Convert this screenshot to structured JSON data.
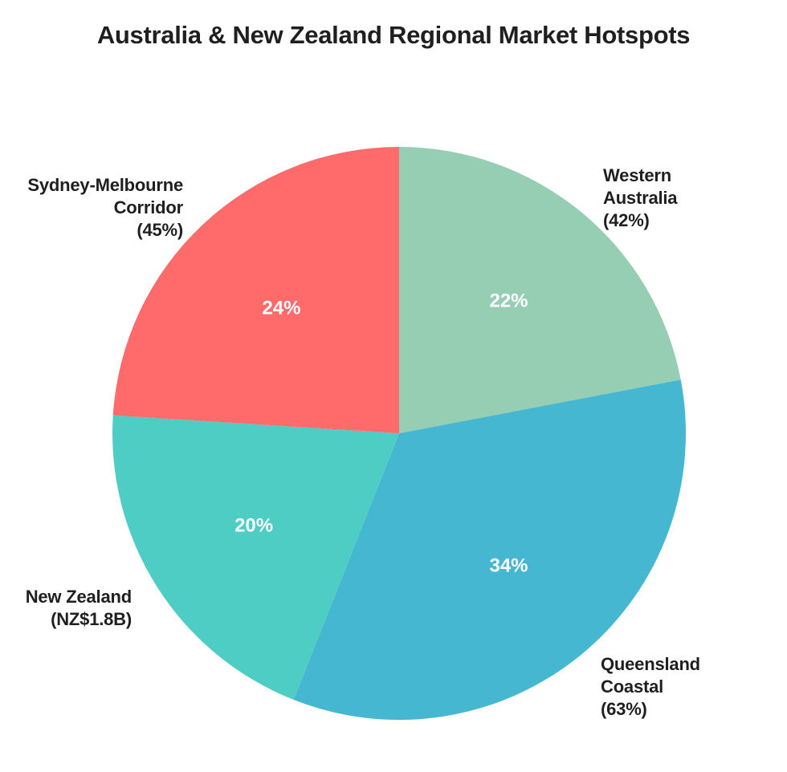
{
  "chart_data": {
    "type": "pie",
    "title": "Australia & New Zealand Regional Market Hotspots",
    "direction": "clockwise",
    "start_angle": "12-oclock",
    "inner_label_radius_ratio": 0.6,
    "inner_label_color": "#ffffff",
    "background_color": "#ffffff",
    "slices": [
      {
        "label": "Western Australia",
        "callout_text": "Western\nAustralia\n(42%)",
        "value_pct": 22,
        "inner_label": "22%",
        "color": "#96CEB4"
      },
      {
        "label": "Queensland Coastal",
        "callout_text": "Queensland\nCoastal\n(63%)",
        "value_pct": 34,
        "inner_label": "34%",
        "color": "#45B7D1"
      },
      {
        "label": "New Zealand",
        "callout_text": "New Zealand\n(NZ$1.8B)",
        "value_pct": 20,
        "inner_label": "20%",
        "color": "#4ECDC4"
      },
      {
        "label": "Sydney-Melbourne Corridor",
        "callout_text": "Sydney-Melbourne\nCorridor\n(45%)",
        "value_pct": 24,
        "inner_label": "24%",
        "color": "#FF6B6B"
      }
    ]
  }
}
